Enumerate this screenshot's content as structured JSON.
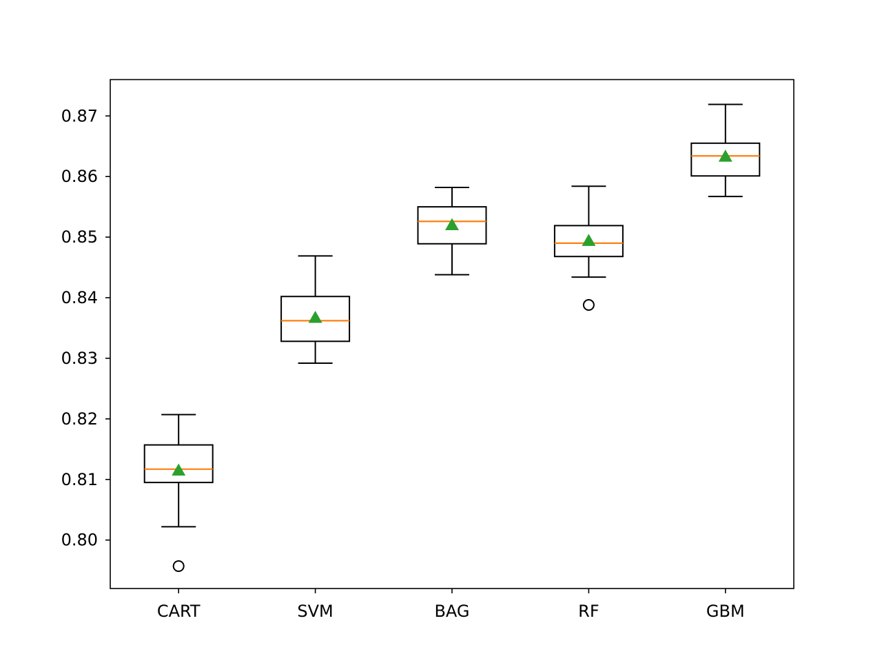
{
  "chart_data": {
    "type": "box",
    "title": "",
    "xlabel": "",
    "ylabel": "",
    "categories": [
      "CART",
      "SVM",
      "BAG",
      "RF",
      "GBM"
    ],
    "ylim": [
      0.792,
      0.876
    ],
    "yticks": [
      0.8,
      0.81,
      0.82,
      0.83,
      0.84,
      0.85,
      0.86,
      0.87
    ],
    "ytick_labels": [
      "0.80",
      "0.81",
      "0.82",
      "0.83",
      "0.84",
      "0.85",
      "0.86",
      "0.87"
    ],
    "grid": false,
    "boxes": [
      {
        "category": "CART",
        "whisker_low": 0.8022,
        "q1": 0.8095,
        "median": 0.8117,
        "q3": 0.8157,
        "whisker_high": 0.8207,
        "mean": 0.8115,
        "outliers": [
          0.7957
        ]
      },
      {
        "category": "SVM",
        "whisker_low": 0.8292,
        "q1": 0.8328,
        "median": 0.8362,
        "q3": 0.8402,
        "whisker_high": 0.8469,
        "mean": 0.8367,
        "outliers": []
      },
      {
        "category": "BAG",
        "whisker_low": 0.8438,
        "q1": 0.8489,
        "median": 0.8526,
        "q3": 0.855,
        "whisker_high": 0.8582,
        "mean": 0.852,
        "outliers": []
      },
      {
        "category": "RF",
        "whisker_low": 0.8434,
        "q1": 0.8468,
        "median": 0.849,
        "q3": 0.8519,
        "whisker_high": 0.8584,
        "mean": 0.8494,
        "outliers": [
          0.8388
        ]
      },
      {
        "category": "GBM",
        "whisker_low": 0.8567,
        "q1": 0.8601,
        "median": 0.8634,
        "q3": 0.8655,
        "whisker_high": 0.8719,
        "mean": 0.8633,
        "outliers": []
      }
    ],
    "colors": {
      "box": "#000000",
      "median": "#ff7f0e",
      "mean": "#2ca02c",
      "outlier": "#000000"
    }
  }
}
